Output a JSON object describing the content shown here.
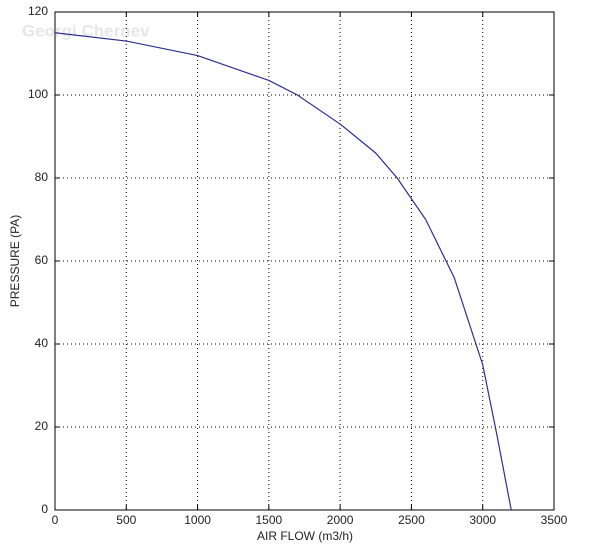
{
  "chart_data": {
    "type": "line",
    "watermark": "Georgi Chernev",
    "x_label": "AIR FLOW (m3/h)",
    "y_label": "PRESSURE (PA)",
    "x": [
      0,
      500,
      1000,
      1500,
      1700,
      2000,
      2250,
      2400,
      2600,
      2800,
      3000,
      3100,
      3200
    ],
    "series": [
      {
        "name": "Pressure",
        "color": "#2b2f8f",
        "values": [
          115,
          113,
          109.5,
          103.5,
          100,
          93,
          86,
          80,
          70,
          56,
          35,
          18,
          0
        ]
      }
    ],
    "xlim": [
      0,
      3500
    ],
    "xticks": [
      0,
      500,
      1000,
      1500,
      2000,
      2500,
      3000,
      3500
    ],
    "ylim": [
      0,
      120
    ],
    "yticks": [
      0,
      20,
      40,
      60,
      80,
      100,
      120
    ],
    "grid": true
  }
}
